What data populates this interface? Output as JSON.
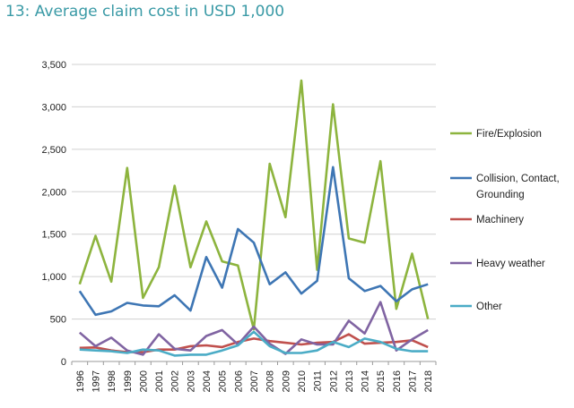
{
  "title": "13: Average claim cost in USD 1,000",
  "chart_data": {
    "type": "line",
    "ylim": [
      0,
      3500
    ],
    "yticks": [
      0,
      500,
      1000,
      1500,
      2000,
      2500,
      3000,
      3500
    ],
    "ytick_labels": [
      "0",
      "500",
      "1,000",
      "1,500",
      "2,000",
      "2,500",
      "3,000",
      "3,500"
    ],
    "grid": "horizontal",
    "legend_position": "right",
    "categories": [
      "1996",
      "1997",
      "1998",
      "1999",
      "2000",
      "2001",
      "2002",
      "2003",
      "2004",
      "2005",
      "2006",
      "2007",
      "2008",
      "2009",
      "2010",
      "2011",
      "2012",
      "2013",
      "2014",
      "2015",
      "2016",
      "2017",
      "2018"
    ],
    "series": [
      {
        "name": "Fire/Explosion",
        "color": "#8db43e",
        "values": [
          910,
          1480,
          940,
          2280,
          750,
          1110,
          2070,
          1110,
          1650,
          1180,
          1130,
          380,
          2330,
          1700,
          3310,
          1080,
          3030,
          1450,
          1400,
          2360,
          620,
          1270,
          500
        ]
      },
      {
        "name": "Collision, Contact,\nGrounding",
        "color": "#3e76b4",
        "values": [
          830,
          550,
          590,
          690,
          660,
          650,
          780,
          600,
          1230,
          870,
          1560,
          1400,
          910,
          1050,
          800,
          950,
          2290,
          980,
          830,
          890,
          710,
          850,
          910
        ]
      },
      {
        "name": "Machinery",
        "color": "#c0504d",
        "values": [
          160,
          165,
          130,
          110,
          110,
          140,
          140,
          180,
          190,
          170,
          230,
          270,
          240,
          220,
          200,
          220,
          230,
          320,
          210,
          220,
          230,
          250,
          170
        ]
      },
      {
        "name": "Heavy weather",
        "color": "#8064a2",
        "values": [
          340,
          180,
          280,
          130,
          80,
          320,
          150,
          130,
          300,
          370,
          200,
          410,
          210,
          90,
          260,
          200,
          200,
          480,
          330,
          700,
          130,
          260,
          370
        ]
      },
      {
        "name": "Other",
        "color": "#4bacc6",
        "values": [
          140,
          130,
          120,
          100,
          140,
          130,
          70,
          80,
          80,
          130,
          190,
          350,
          180,
          100,
          100,
          130,
          230,
          170,
          270,
          230,
          150,
          120,
          120
        ]
      }
    ]
  }
}
